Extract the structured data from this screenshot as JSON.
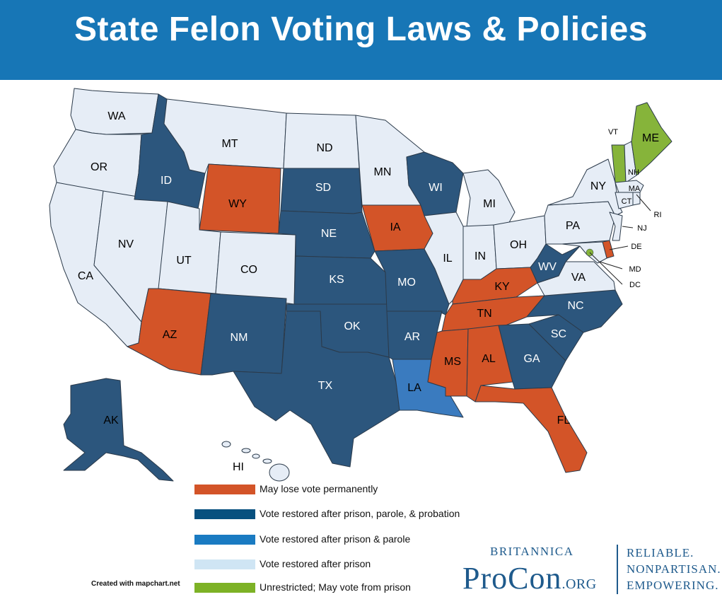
{
  "title": "State Felon Voting Laws & Policies",
  "colors": {
    "banner": "#1776b6",
    "permanent": "#d35428",
    "prison_parole_probation": "#2c567d",
    "prison_parole": "#3a7bbf",
    "prison": "#e6edf6",
    "unrestricted": "#86b43a"
  },
  "legend": [
    {
      "key": "permanent",
      "label": "May lose vote permanently",
      "color": "#d35428"
    },
    {
      "key": "prison_parole_probation",
      "label": "Vote restored after prison, parole, & probation",
      "color": "#07507f"
    },
    {
      "key": "prison_parole",
      "label": "Vote restored after prison & parole",
      "color": "#1a7bc2"
    },
    {
      "key": "prison",
      "label": "Vote restored after prison",
      "color": "#cfe5f4"
    },
    {
      "key": "unrestricted",
      "label": "Unrestricted; May vote from prison",
      "color": "#7db226"
    }
  ],
  "states": {
    "WA": "prison",
    "OR": "prison",
    "CA": "prison",
    "NV": "prison",
    "ID": "prison_parole_probation",
    "MT": "prison",
    "WY": "permanent",
    "UT": "prison",
    "CO": "prison",
    "AZ": "permanent",
    "NM": "prison_parole_probation",
    "ND": "prison",
    "SD": "prison_parole_probation",
    "NE": "prison_parole_probation",
    "KS": "prison_parole_probation",
    "OK": "prison_parole_probation",
    "TX": "prison_parole_probation",
    "MN": "prison",
    "IA": "permanent",
    "MO": "prison_parole_probation",
    "AR": "prison_parole_probation",
    "LA": "prison_parole",
    "WI": "prison_parole_probation",
    "IL": "prison",
    "MI": "prison",
    "IN": "prison",
    "OH": "prison",
    "KY": "permanent",
    "TN": "permanent",
    "MS": "permanent",
    "AL": "permanent",
    "GA": "prison_parole_probation",
    "FL": "permanent",
    "SC": "prison_parole_probation",
    "NC": "prison_parole_probation",
    "VA": "prison",
    "WV": "prison_parole_probation",
    "PA": "prison",
    "NY": "prison",
    "VT": "unrestricted",
    "NH": "prison",
    "ME": "unrestricted",
    "MA": "prison",
    "CT": "prison",
    "RI": "prison",
    "NJ": "prison",
    "DE": "permanent",
    "MD": "prison",
    "DC": "unrestricted",
    "AK": "prison_parole_probation",
    "HI": "prison"
  },
  "labels": {
    "WA": "WA",
    "OR": "OR",
    "CA": "CA",
    "NV": "NV",
    "ID": "ID",
    "MT": "MT",
    "WY": "WY",
    "UT": "UT",
    "CO": "CO",
    "AZ": "AZ",
    "NM": "NM",
    "ND": "ND",
    "SD": "SD",
    "NE": "NE",
    "KS": "KS",
    "OK": "OK",
    "TX": "TX",
    "MN": "MN",
    "IA": "IA",
    "MO": "MO",
    "AR": "AR",
    "LA": "LA",
    "WI": "WI",
    "IL": "IL",
    "MI": "MI",
    "IN": "IN",
    "OH": "OH",
    "KY": "KY",
    "TN": "TN",
    "MS": "MS",
    "AL": "AL",
    "GA": "GA",
    "FL": "FL",
    "SC": "SC",
    "NC": "NC",
    "VA": "VA",
    "WV": "WV",
    "PA": "PA",
    "NY": "NY",
    "VT": "VT",
    "NH": "NH",
    "ME": "ME",
    "MA": "MA",
    "CT": "CT",
    "RI": "RI",
    "NJ": "NJ",
    "DE": "DE",
    "MD": "MD",
    "DC": "DC",
    "AK": "AK",
    "HI": "HI"
  },
  "credit": "Created with mapchart.net",
  "branding": {
    "britannica": "BRITANNICA",
    "procon": "ProCon",
    "org": ".ORG",
    "tagline": [
      "RELIABLE.",
      "NONPARTISAN.",
      "EMPOWERING."
    ]
  }
}
